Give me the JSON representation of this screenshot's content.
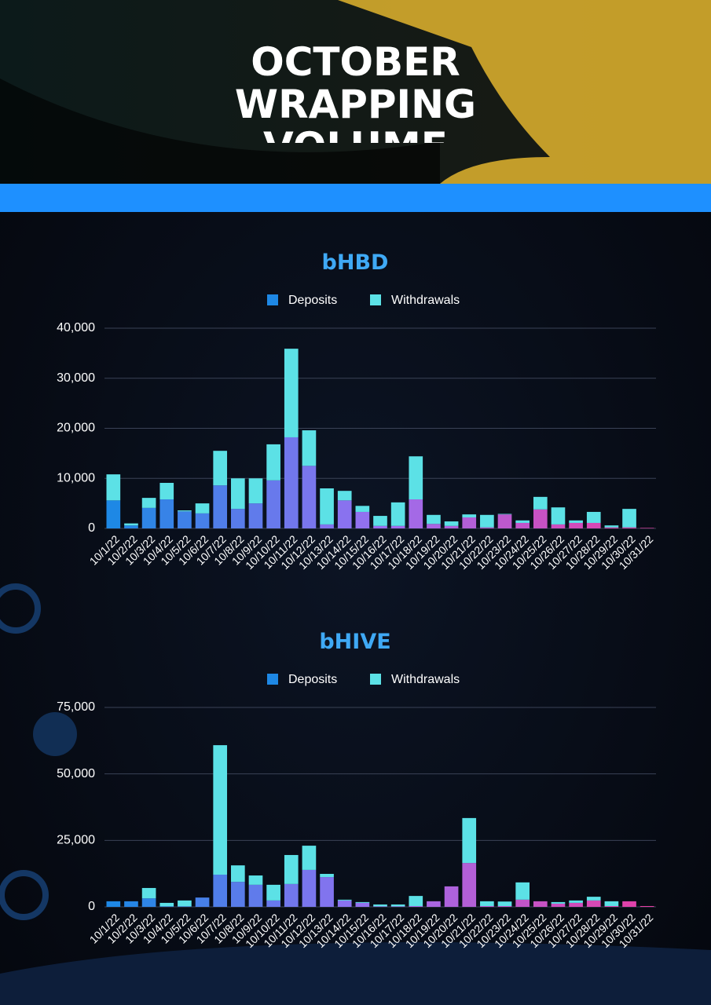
{
  "header": {
    "title": "OCTOBER WRAPPING VOLUME"
  },
  "chart_data": [
    {
      "type": "stacked_bar",
      "title": "bHBD",
      "categories": [
        "10/1/22",
        "10/2/22",
        "10/3/22",
        "10/4/22",
        "10/5/22",
        "10/6/22",
        "10/7/22",
        "10/8/22",
        "10/9/22",
        "10/10/22",
        "10/11/22",
        "10/12/22",
        "10/13/22",
        "10/14/22",
        "10/15/22",
        "10/16/22",
        "10/17/22",
        "10/18/22",
        "10/19/22",
        "10/20/22",
        "10/21/22",
        "10/22/22",
        "10/23/22",
        "10/24/22",
        "10/25/22",
        "10/26/22",
        "10/27/22",
        "10/28/22",
        "10/29/22",
        "10/30/22",
        "10/31/22"
      ],
      "series": [
        {
          "name": "Deposits",
          "color": "#1e88e5",
          "gradient": [
            "#1e88e5",
            "#9a6ff0",
            "#e53fa6"
          ],
          "values": [
            5600,
            600,
            4100,
            5800,
            3400,
            3000,
            8600,
            3900,
            5000,
            9600,
            18200,
            12500,
            800,
            5600,
            3300,
            500,
            500,
            5800,
            900,
            500,
            2200,
            200,
            2800,
            1100,
            3800,
            800,
            1100,
            1100,
            200,
            200,
            100
          ]
        },
        {
          "name": "Withdrawals",
          "color": "#5ce1e6",
          "values": [
            5200,
            400,
            2000,
            3300,
            200,
            2000,
            6900,
            6100,
            5000,
            7200,
            17700,
            7100,
            7200,
            1900,
            1200,
            2000,
            4700,
            8600,
            1800,
            900,
            600,
            2500,
            100,
            500,
            2500,
            3400,
            500,
            2200,
            400,
            3700,
            0
          ]
        }
      ],
      "ylim": [
        0,
        40000
      ],
      "yticks": [
        0,
        {
          "value": 10000,
          "label": "10,000"
        },
        {
          "value": 20000,
          "label": "20,000"
        },
        {
          "value": 30000,
          "label": "30,000"
        },
        {
          "value": 40000,
          "label": "40,000"
        }
      ],
      "grid": true,
      "legend": "top"
    },
    {
      "type": "stacked_bar",
      "title": "bHIVE",
      "categories": [
        "10/1/22",
        "10/2/22",
        "10/3/22",
        "10/4/22",
        "10/5/22",
        "10/6/22",
        "10/7/22",
        "10/8/22",
        "10/9/22",
        "10/10/22",
        "10/11/22",
        "10/12/22",
        "10/13/22",
        "10/14/22",
        "10/15/22",
        "10/16/22",
        "10/17/22",
        "10/18/22",
        "10/19/22",
        "10/20/22",
        "10/21/22",
        "10/22/22",
        "10/23/22",
        "10/24/22",
        "10/25/22",
        "10/26/22",
        "10/27/22",
        "10/28/22",
        "10/29/22",
        "10/30/22",
        "10/31/22"
      ],
      "series": [
        {
          "name": "Deposits",
          "color": "#1e88e5",
          "gradient": [
            "#1e88e5",
            "#9a6ff0",
            "#e53fa6"
          ],
          "values": [
            2100,
            2100,
            3200,
            200,
            200,
            3500,
            12100,
            9400,
            8300,
            2400,
            8600,
            13900,
            11200,
            2400,
            1500,
            200,
            200,
            300,
            2100,
            7700,
            16500,
            300,
            300,
            2700,
            2100,
            1200,
            1500,
            2400,
            300,
            2100,
            300
          ]
        },
        {
          "name": "Withdrawals",
          "color": "#5ce1e6",
          "values": [
            0,
            0,
            3900,
            1300,
            2200,
            0,
            48700,
            6200,
            3500,
            5900,
            10900,
            9100,
            1200,
            300,
            300,
            700,
            700,
            3800,
            0,
            0,
            16900,
            1800,
            1700,
            6500,
            0,
            600,
            900,
            1400,
            1800,
            0,
            0
          ]
        }
      ],
      "ylim": [
        0,
        75000
      ],
      "yticks": [
        0,
        {
          "value": 25000,
          "label": "25,000"
        },
        {
          "value": 50000,
          "label": "50,000"
        },
        {
          "value": 75000,
          "label": "75,000"
        }
      ],
      "grid": true,
      "legend": "top"
    }
  ]
}
